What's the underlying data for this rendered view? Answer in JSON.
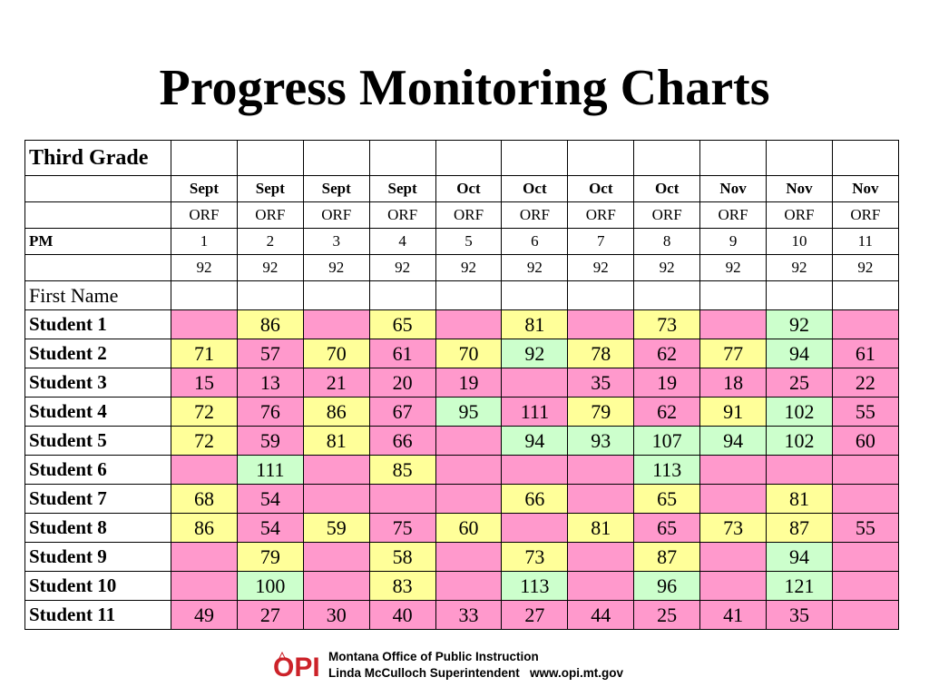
{
  "title": "Progress Monitoring Charts",
  "table": {
    "corner_label": "Third Grade",
    "months": [
      "Sept",
      "Sept",
      "Sept",
      "Sept",
      "Oct",
      "Oct",
      "Oct",
      "Oct",
      "Nov",
      "Nov",
      "Nov"
    ],
    "measure": [
      "ORF",
      "ORF",
      "ORF",
      "ORF",
      "ORF",
      "ORF",
      "ORF",
      "ORF",
      "ORF",
      "ORF",
      "ORF"
    ],
    "pm_label": "PM",
    "pm_numbers": [
      "1",
      "2",
      "3",
      "4",
      "5",
      "6",
      "7",
      "8",
      "9",
      "10",
      "11"
    ],
    "benchmarks": [
      "92",
      "92",
      "92",
      "92",
      "92",
      "92",
      "92",
      "92",
      "92",
      "92",
      "92"
    ],
    "first_name_label": "First Name",
    "students": [
      {
        "name": "Student 1",
        "scores": [
          "",
          "86",
          "",
          "65",
          "",
          "81",
          "",
          "73",
          "",
          "92",
          ""
        ]
      },
      {
        "name": "Student 2",
        "scores": [
          "71",
          "57",
          "70",
          "61",
          "70",
          "92",
          "78",
          "62",
          "77",
          "94",
          "61"
        ]
      },
      {
        "name": "Student 3",
        "scores": [
          "15",
          "13",
          "21",
          "20",
          "19",
          "",
          "35",
          "19",
          "18",
          "25",
          "22"
        ]
      },
      {
        "name": "Student 4",
        "scores": [
          "72",
          "76",
          "86",
          "67",
          "95",
          "111",
          "79",
          "62",
          "91",
          "102",
          "55"
        ]
      },
      {
        "name": "Student 5",
        "scores": [
          "72",
          "59",
          "81",
          "66",
          "",
          "94",
          "93",
          "107",
          "94",
          "102",
          "60"
        ]
      },
      {
        "name": "Student 6",
        "scores": [
          "",
          "111",
          "",
          "85",
          "",
          "",
          "",
          "113",
          "",
          "",
          ""
        ]
      },
      {
        "name": "Student 7",
        "scores": [
          "68",
          "54",
          "",
          "",
          "",
          "66",
          "",
          "65",
          "",
          "81",
          ""
        ]
      },
      {
        "name": "Student 8",
        "scores": [
          "86",
          "54",
          "59",
          "75",
          "60",
          "",
          "81",
          "65",
          "73",
          "87",
          "55"
        ]
      },
      {
        "name": "Student 9",
        "scores": [
          "",
          "79",
          "",
          "58",
          "",
          "73",
          "",
          "87",
          "",
          "94",
          ""
        ]
      },
      {
        "name": "Student 10",
        "scores": [
          "",
          "100",
          "",
          "83",
          "",
          "113",
          "",
          "96",
          "",
          "121",
          ""
        ]
      },
      {
        "name": "Student 11",
        "scores": [
          "49",
          "27",
          "30",
          "40",
          "33",
          "27",
          "44",
          "25",
          "41",
          "35",
          ""
        ]
      }
    ],
    "cell_colors": [
      [
        "pink",
        "yellow",
        "pink",
        "yellow",
        "pink",
        "yellow",
        "pink",
        "yellow",
        "pink",
        "green",
        "pink"
      ],
      [
        "yellow",
        "pink",
        "yellow",
        "pink",
        "yellow",
        "green",
        "yellow",
        "pink",
        "yellow",
        "green",
        "pink"
      ],
      [
        "pink",
        "pink",
        "pink",
        "pink",
        "pink",
        "pink",
        "pink",
        "pink",
        "pink",
        "pink",
        "pink"
      ],
      [
        "yellow",
        "pink",
        "yellow",
        "pink",
        "green",
        "pink",
        "yellow",
        "pink",
        "yellow",
        "green",
        "pink"
      ],
      [
        "yellow",
        "pink",
        "yellow",
        "pink",
        "pink",
        "green",
        "green",
        "green",
        "green",
        "green",
        "pink"
      ],
      [
        "pink",
        "green",
        "pink",
        "yellow",
        "pink",
        "pink",
        "pink",
        "green",
        "pink",
        "pink",
        "pink"
      ],
      [
        "yellow",
        "pink",
        "pink",
        "pink",
        "pink",
        "yellow",
        "pink",
        "yellow",
        "pink",
        "yellow",
        "pink"
      ],
      [
        "yellow",
        "pink",
        "yellow",
        "pink",
        "yellow",
        "pink",
        "yellow",
        "pink",
        "yellow",
        "yellow",
        "pink"
      ],
      [
        "pink",
        "yellow",
        "pink",
        "yellow",
        "pink",
        "yellow",
        "pink",
        "yellow",
        "pink",
        "green",
        "pink"
      ],
      [
        "pink",
        "green",
        "pink",
        "yellow",
        "pink",
        "green",
        "pink",
        "green",
        "pink",
        "green",
        "pink"
      ],
      [
        "pink",
        "pink",
        "pink",
        "pink",
        "pink",
        "pink",
        "pink",
        "pink",
        "pink",
        "pink",
        "pink"
      ]
    ]
  },
  "colors": {
    "pink": "#ff99cc",
    "yellow": "#ffff99",
    "green": "#ccffcc",
    "logo_red": "#cc2229"
  },
  "footer": {
    "logo_text": "OPI",
    "logo_icon": "opi-logo-icon",
    "org_name": "Montana Office of Public Instruction",
    "superintendent": "Linda McCulloch Superintendent",
    "website": "www.opi.mt.gov"
  }
}
